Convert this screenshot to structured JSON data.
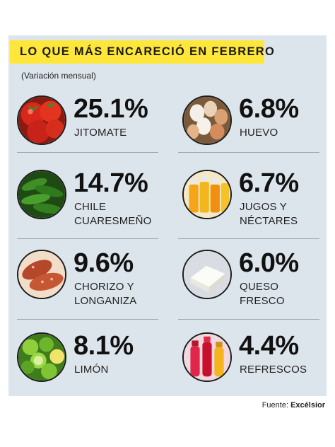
{
  "chart_data": {
    "type": "table",
    "title": "LO QUE MÁS ENCARECIÓ EN FEBRERO",
    "subtitle": "(Variación mensual)",
    "unit": "%",
    "items": [
      {
        "name": "JITOMATE",
        "lines": [
          "JITOMATE"
        ],
        "value": 25.1,
        "value_label": "25.1%",
        "icon": "tomato-icon"
      },
      {
        "name": "HUEVO",
        "lines": [
          "HUEVO"
        ],
        "value": 6.8,
        "value_label": "6.8%",
        "icon": "egg-icon"
      },
      {
        "name": "CHILE CUARESMEÑO",
        "lines": [
          "CHILE",
          "CUARESMEÑO"
        ],
        "value": 14.7,
        "value_label": "14.7%",
        "icon": "chili-icon"
      },
      {
        "name": "JUGOS Y NÉCTARES",
        "lines": [
          "JUGOS Y",
          "NÉCTARES"
        ],
        "value": 6.7,
        "value_label": "6.7%",
        "icon": "juice-icon"
      },
      {
        "name": "CHORIZO Y LONGANIZA",
        "lines": [
          "CHORIZO Y",
          "LONGANIZA"
        ],
        "value": 9.6,
        "value_label": "9.6%",
        "icon": "sausage-icon"
      },
      {
        "name": "QUESO FRESCO",
        "lines": [
          "QUESO",
          "FRESCO"
        ],
        "value": 6.0,
        "value_label": "6.0%",
        "icon": "cheese-icon"
      },
      {
        "name": "LIMÓN",
        "lines": [
          "LIMÓN"
        ],
        "value": 8.1,
        "value_label": "8.1%",
        "icon": "lime-icon"
      },
      {
        "name": "REFRESCOS",
        "lines": [
          "REFRESCOS"
        ],
        "value": 4.4,
        "value_label": "4.4%",
        "icon": "soda-icon"
      }
    ]
  },
  "source": {
    "prefix": "Fuente:",
    "name": "Excélsior"
  },
  "colors": {
    "title_bg": "#ffe63a",
    "panel_bg": "#dde5ec",
    "text": "#111111"
  }
}
